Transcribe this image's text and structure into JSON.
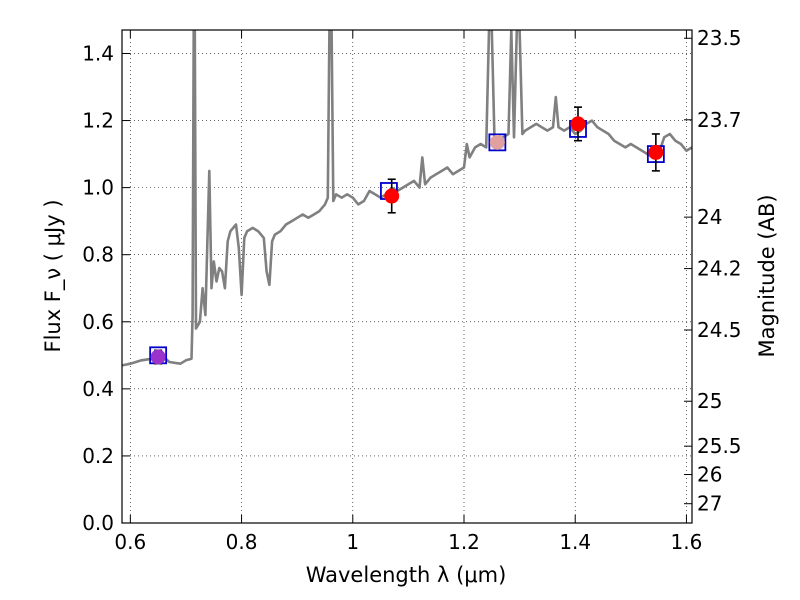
{
  "chart_data": {
    "type": "scatter",
    "title": "",
    "xlabel": "Wavelength  λ (μm)",
    "ylabel": "Flux  F_ν  ( μJy )",
    "ylabel_right": "Magnitude (AB)",
    "xlim": [
      0.585,
      1.61
    ],
    "ylim": [
      0.0,
      1.47
    ],
    "grid": true,
    "x_ticks": [
      {
        "value": 0.6,
        "label": "0.6"
      },
      {
        "value": 0.8,
        "label": "0.8"
      },
      {
        "value": 1.0,
        "label": "1"
      },
      {
        "value": 1.2,
        "label": "1.2"
      },
      {
        "value": 1.4,
        "label": "1.4"
      },
      {
        "value": 1.6,
        "label": "1.6"
      }
    ],
    "y_ticks": [
      {
        "value": 0.0,
        "label": "0.0"
      },
      {
        "value": 0.2,
        "label": "0.2"
      },
      {
        "value": 0.4,
        "label": "0.4"
      },
      {
        "value": 0.6,
        "label": "0.6"
      },
      {
        "value": 0.8,
        "label": "0.8"
      },
      {
        "value": 1.0,
        "label": "1.0"
      },
      {
        "value": 1.2,
        "label": "1.2"
      },
      {
        "value": 1.4,
        "label": "1.4"
      }
    ],
    "right_ticks": [
      {
        "mag": 23.5,
        "label": "23.5"
      },
      {
        "mag": 23.7,
        "label": "23.7"
      },
      {
        "mag": 24.0,
        "label": "24"
      },
      {
        "mag": 24.2,
        "label": "24.2"
      },
      {
        "mag": 24.5,
        "label": "24.5"
      },
      {
        "mag": 25.0,
        "label": "25"
      },
      {
        "mag": 25.5,
        "label": "25.5"
      },
      {
        "mag": 26.0,
        "label": "26"
      },
      {
        "mag": 27.0,
        "label": "27"
      }
    ],
    "model_spectrum": {
      "color": "#808080",
      "points": [
        [
          0.585,
          0.47
        ],
        [
          0.6,
          0.475
        ],
        [
          0.62,
          0.485
        ],
        [
          0.64,
          0.49
        ],
        [
          0.66,
          0.495
        ],
        [
          0.67,
          0.48
        ],
        [
          0.69,
          0.475
        ],
        [
          0.7,
          0.485
        ],
        [
          0.71,
          0.49
        ],
        [
          0.712,
          0.62
        ],
        [
          0.714,
          1.47
        ],
        [
          0.716,
          1.47
        ],
        [
          0.718,
          0.58
        ],
        [
          0.725,
          0.6
        ],
        [
          0.73,
          0.7
        ],
        [
          0.735,
          0.62
        ],
        [
          0.742,
          1.05
        ],
        [
          0.746,
          0.7
        ],
        [
          0.75,
          0.78
        ],
        [
          0.755,
          0.72
        ],
        [
          0.76,
          0.76
        ],
        [
          0.765,
          0.75
        ],
        [
          0.77,
          0.7
        ],
        [
          0.775,
          0.84
        ],
        [
          0.78,
          0.87
        ],
        [
          0.785,
          0.88
        ],
        [
          0.79,
          0.89
        ],
        [
          0.795,
          0.82
        ],
        [
          0.8,
          0.68
        ],
        [
          0.805,
          0.85
        ],
        [
          0.81,
          0.87
        ],
        [
          0.82,
          0.88
        ],
        [
          0.83,
          0.87
        ],
        [
          0.84,
          0.85
        ],
        [
          0.845,
          0.75
        ],
        [
          0.85,
          0.71
        ],
        [
          0.855,
          0.84
        ],
        [
          0.86,
          0.86
        ],
        [
          0.87,
          0.87
        ],
        [
          0.88,
          0.89
        ],
        [
          0.89,
          0.9
        ],
        [
          0.9,
          0.91
        ],
        [
          0.91,
          0.92
        ],
        [
          0.92,
          0.91
        ],
        [
          0.93,
          0.92
        ],
        [
          0.94,
          0.93
        ],
        [
          0.95,
          0.95
        ],
        [
          0.955,
          0.97
        ],
        [
          0.958,
          1.47
        ],
        [
          0.962,
          1.47
        ],
        [
          0.965,
          0.96
        ],
        [
          0.97,
          0.98
        ],
        [
          0.98,
          0.97
        ],
        [
          0.99,
          0.98
        ],
        [
          1.0,
          0.97
        ],
        [
          1.01,
          0.95
        ],
        [
          1.02,
          0.96
        ],
        [
          1.03,
          0.99
        ],
        [
          1.04,
          0.98
        ],
        [
          1.05,
          0.97
        ],
        [
          1.06,
          0.98
        ],
        [
          1.07,
          1.0
        ],
        [
          1.08,
          0.99
        ],
        [
          1.09,
          1.0
        ],
        [
          1.1,
          1.01
        ],
        [
          1.11,
          1.02
        ],
        [
          1.12,
          1.0
        ],
        [
          1.125,
          1.09
        ],
        [
          1.13,
          1.01
        ],
        [
          1.14,
          1.03
        ],
        [
          1.15,
          1.04
        ],
        [
          1.16,
          1.05
        ],
        [
          1.17,
          1.06
        ],
        [
          1.18,
          1.04
        ],
        [
          1.19,
          1.05
        ],
        [
          1.2,
          1.06
        ],
        [
          1.205,
          1.13
        ],
        [
          1.21,
          1.09
        ],
        [
          1.22,
          1.12
        ],
        [
          1.23,
          1.13
        ],
        [
          1.24,
          1.12
        ],
        [
          1.245,
          1.47
        ],
        [
          1.25,
          1.47
        ],
        [
          1.255,
          1.13
        ],
        [
          1.26,
          1.14
        ],
        [
          1.27,
          1.15
        ],
        [
          1.28,
          1.16
        ],
        [
          1.285,
          1.47
        ],
        [
          1.29,
          1.15
        ],
        [
          1.295,
          1.47
        ],
        [
          1.3,
          1.47
        ],
        [
          1.305,
          1.16
        ],
        [
          1.31,
          1.17
        ],
        [
          1.32,
          1.18
        ],
        [
          1.33,
          1.19
        ],
        [
          1.34,
          1.18
        ],
        [
          1.35,
          1.17
        ],
        [
          1.36,
          1.18
        ],
        [
          1.365,
          1.27
        ],
        [
          1.37,
          1.18
        ],
        [
          1.38,
          1.17
        ],
        [
          1.39,
          1.18
        ],
        [
          1.4,
          1.16
        ],
        [
          1.41,
          1.17
        ],
        [
          1.42,
          1.19
        ],
        [
          1.43,
          1.2
        ],
        [
          1.44,
          1.18
        ],
        [
          1.45,
          1.17
        ],
        [
          1.46,
          1.16
        ],
        [
          1.47,
          1.14
        ],
        [
          1.48,
          1.13
        ],
        [
          1.49,
          1.12
        ],
        [
          1.5,
          1.13
        ],
        [
          1.51,
          1.12
        ],
        [
          1.52,
          1.11
        ],
        [
          1.53,
          1.1
        ],
        [
          1.54,
          1.09
        ],
        [
          1.55,
          1.1
        ],
        [
          1.56,
          1.15
        ],
        [
          1.57,
          1.16
        ],
        [
          1.58,
          1.14
        ],
        [
          1.59,
          1.13
        ],
        [
          1.6,
          1.11
        ],
        [
          1.61,
          1.12
        ]
      ]
    },
    "model_photometry": {
      "marker": "square",
      "color": "#0000cc",
      "points": [
        [
          0.65,
          0.5
        ],
        [
          1.065,
          0.99
        ],
        [
          1.26,
          1.135
        ],
        [
          1.405,
          1.175
        ],
        [
          1.545,
          1.1
        ]
      ]
    },
    "observed": {
      "marker": "circle",
      "color": "#ff0000",
      "points": [
        {
          "x": 0.65,
          "y": 0.495,
          "err": 0.02,
          "color": "#9933cc"
        },
        {
          "x": 1.07,
          "y": 0.975,
          "err": 0.05,
          "color": "#ff0000"
        },
        {
          "x": 1.26,
          "y": 1.135,
          "err": 0,
          "color": "#e0a0a0"
        },
        {
          "x": 1.405,
          "y": 1.19,
          "err": 0.05,
          "color": "#ff0000"
        },
        {
          "x": 1.545,
          "y": 1.105,
          "err": 0.055,
          "color": "#ff0000"
        }
      ]
    }
  }
}
